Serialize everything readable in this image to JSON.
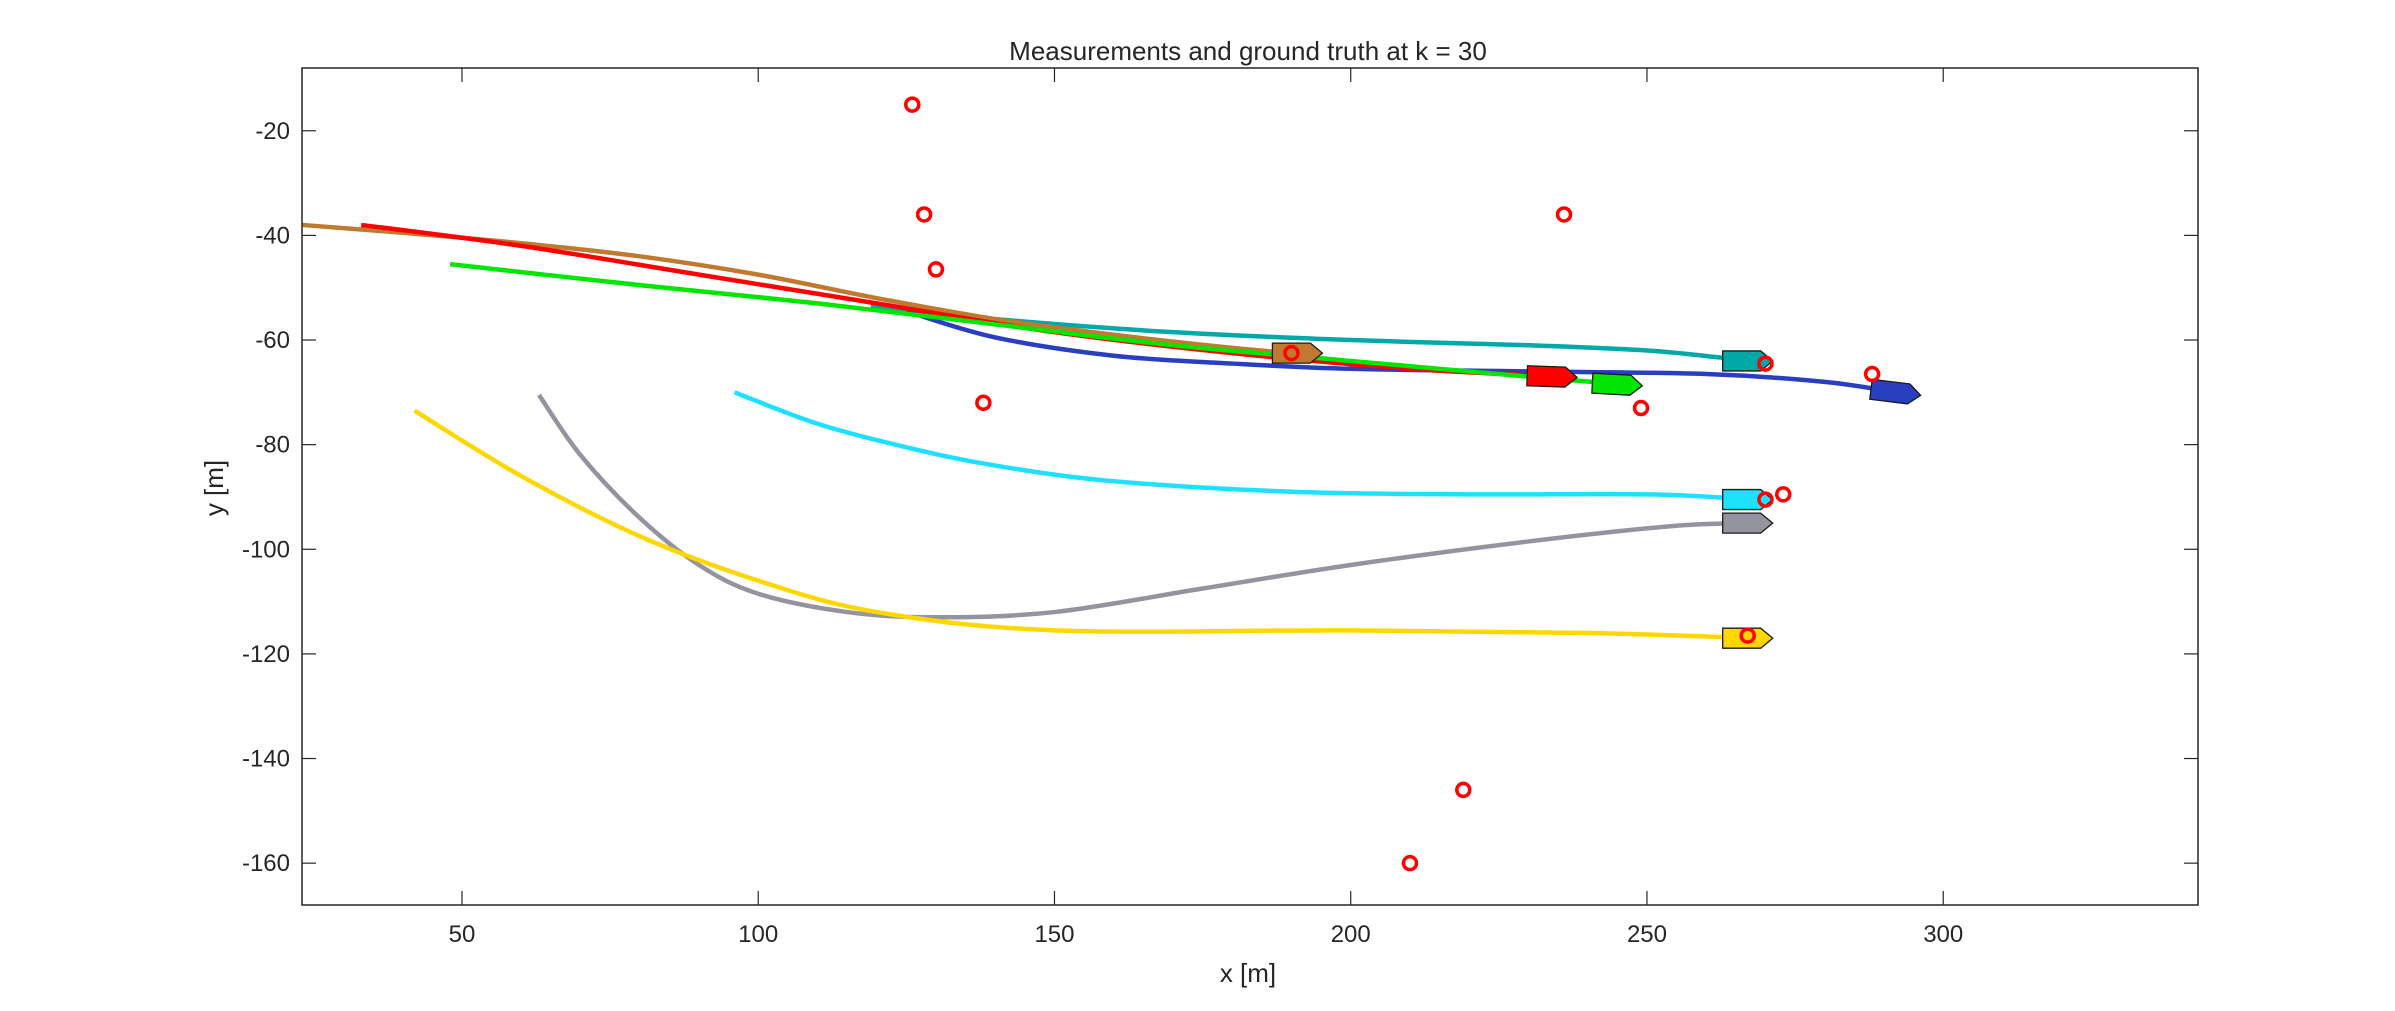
{
  "chart_data": {
    "type": "line",
    "title": "Measurements and ground truth at k = 30",
    "xlabel": "x [m]",
    "ylabel": "y [m]",
    "xlim": [
      23,
      343
    ],
    "ylim": [
      -168,
      -8
    ],
    "xticks": [
      50,
      100,
      150,
      200,
      250,
      300
    ],
    "yticks": [
      -160,
      -140,
      -120,
      -100,
      -80,
      -60,
      -40,
      -20
    ],
    "grid": false,
    "series": [
      {
        "color": "#00A8A8",
        "x": [
          119,
          140,
          170,
          200,
          230,
          250,
          262,
          268
        ],
        "y": [
          -53.5,
          -56,
          -58.5,
          -60,
          -61,
          -62,
          -63.3,
          -64
        ]
      },
      {
        "color": "#2A3FBF",
        "x": [
          125,
          140,
          160,
          180,
          200,
          230,
          260,
          280,
          292
        ],
        "y": [
          -54.5,
          -59.5,
          -63,
          -64.5,
          -65.5,
          -66,
          -66.5,
          -68,
          -70
        ]
      },
      {
        "color": "#BF7A2F",
        "x": [
          23,
          40,
          60,
          80,
          100,
          120,
          140,
          160,
          180,
          190
        ],
        "y": [
          -38,
          -39.5,
          -41.5,
          -44,
          -47.5,
          -52,
          -56,
          -59,
          -61.5,
          -62.5
        ]
      },
      {
        "color": "#FF0000",
        "x": [
          33,
          60,
          90,
          120,
          150,
          180,
          210,
          235
        ],
        "y": [
          -38,
          -42,
          -47.5,
          -53,
          -58.5,
          -62.5,
          -65.5,
          -67
        ]
      },
      {
        "color": "#00E600",
        "x": [
          48,
          80,
          110,
          140,
          170,
          200,
          230,
          246
        ],
        "y": [
          -45.5,
          -49.5,
          -53,
          -57,
          -61,
          -64,
          -67,
          -68.5
        ]
      },
      {
        "color": "#1FE0FF",
        "x": [
          96,
          110,
          125,
          140,
          160,
          190,
          220,
          250,
          268
        ],
        "y": [
          -70,
          -76,
          -80.5,
          -84,
          -87,
          -89,
          -89.5,
          -89.5,
          -90.5
        ]
      },
      {
        "color": "#9494A1",
        "x": [
          63,
          70,
          80,
          90,
          100,
          115,
          130,
          150,
          175,
          200,
          230,
          255,
          269
        ],
        "y": [
          -70.5,
          -82,
          -94,
          -103,
          -108.5,
          -112,
          -113,
          -112,
          -107.5,
          -103,
          -98.5,
          -95.5,
          -95
        ]
      },
      {
        "color": "#FFD700",
        "x": [
          42,
          60,
          80,
          100,
          120,
          150,
          200,
          240,
          268
        ],
        "y": [
          -73.5,
          -86,
          -97.5,
          -106,
          -112,
          -115.5,
          -115.5,
          -116,
          -117
        ]
      }
    ],
    "targets": [
      {
        "color": "#00A8A8",
        "x": 267,
        "y": -64,
        "dir": 0
      },
      {
        "color": "#2A3FBF",
        "x": 292,
        "y": -70,
        "dir": -7
      },
      {
        "color": "#BF7A2F",
        "x": 191,
        "y": -62.5,
        "dir": 0
      },
      {
        "color": "#FF0000",
        "x": 234,
        "y": -67,
        "dir": -2
      },
      {
        "color": "#00E600",
        "x": 245,
        "y": -68.5,
        "dir": -3
      },
      {
        "color": "#1FE0FF",
        "x": 267,
        "y": -90.5,
        "dir": 0
      },
      {
        "color": "#9494A1",
        "x": 267,
        "y": -95,
        "dir": 0
      },
      {
        "color": "#FFD700",
        "x": 267,
        "y": -117,
        "dir": 0
      }
    ],
    "measurements": {
      "color": "#FF0000",
      "x": [
        126,
        128,
        130,
        138,
        190,
        236,
        235,
        249,
        270,
        273,
        270,
        288,
        267,
        219,
        210
      ],
      "y": [
        -15,
        -36,
        -46.5,
        -72,
        -62.5,
        -36,
        -67,
        -73,
        -64.5,
        -89.5,
        -90.5,
        -66.5,
        -116.5,
        -146,
        -160
      ]
    }
  }
}
